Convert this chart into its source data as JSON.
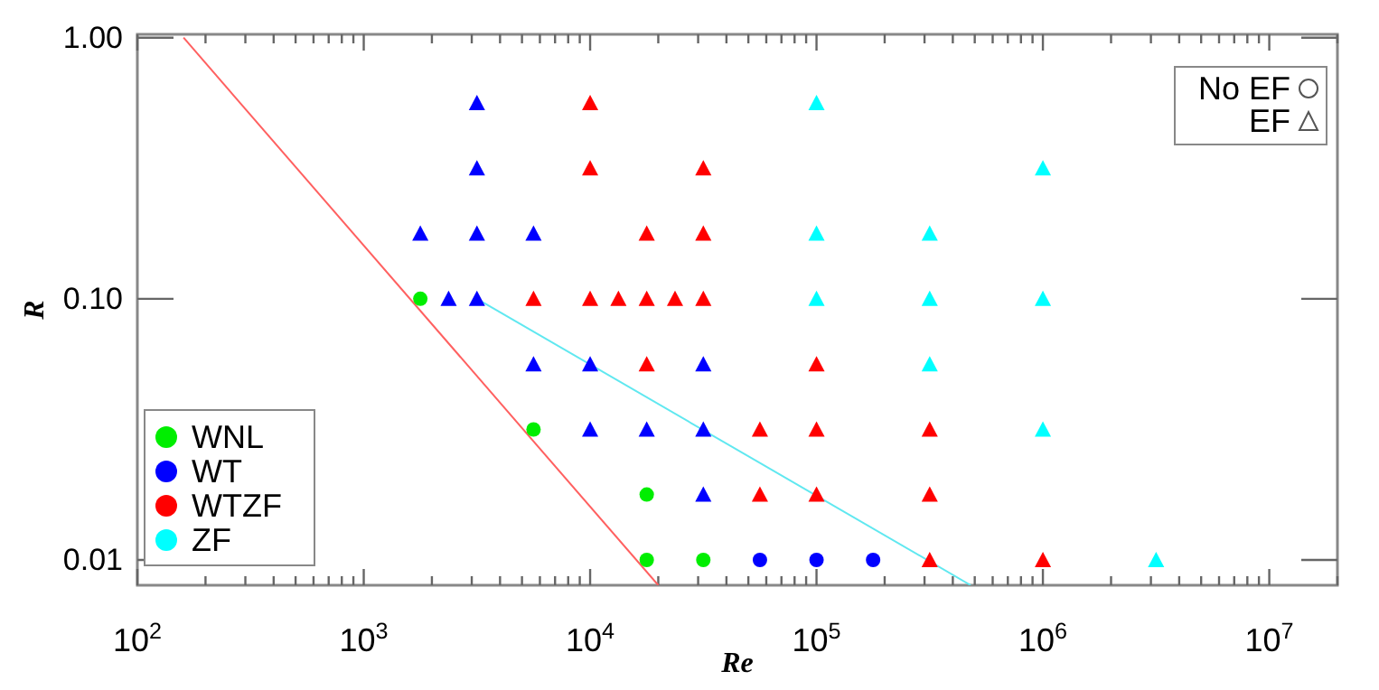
{
  "chart_data": {
    "type": "scatter",
    "xlabel": "Re",
    "ylabel": "R",
    "log": "xy",
    "grid": false,
    "legend": "bottom left",
    "xlim": [
      100,
      20000000
    ],
    "ylim": [
      0.008,
      1.03
    ],
    "xticks": [
      {
        "value": 100,
        "label": "10$^{2}$"
      },
      {
        "value": 200,
        "label": null
      },
      {
        "value": 300,
        "label": null
      },
      {
        "value": 400,
        "label": null
      },
      {
        "value": 500,
        "label": null
      },
      {
        "value": 600,
        "label": null
      },
      {
        "value": 700,
        "label": null
      },
      {
        "value": 800,
        "label": null
      },
      {
        "value": 900,
        "label": null
      },
      {
        "value": 1000,
        "label": "10$^{3}$"
      },
      {
        "value": 2000,
        "label": null
      },
      {
        "value": 3000,
        "label": null
      },
      {
        "value": 4000,
        "label": null
      },
      {
        "value": 5000,
        "label": null
      },
      {
        "value": 6000,
        "label": null
      },
      {
        "value": 7000,
        "label": null
      },
      {
        "value": 8000,
        "label": null
      },
      {
        "value": 9000,
        "label": null
      },
      {
        "value": 10000,
        "label": "10$^{4}$"
      },
      {
        "value": 20000,
        "label": null
      },
      {
        "value": 30000,
        "label": null
      },
      {
        "value": 40000,
        "label": null
      },
      {
        "value": 50000,
        "label": null
      },
      {
        "value": 60000,
        "label": null
      },
      {
        "value": 70000,
        "label": null
      },
      {
        "value": 80000,
        "label": null
      },
      {
        "value": 90000,
        "label": null
      },
      {
        "value": 100000,
        "label": "10$^{5}$"
      },
      {
        "value": 200000,
        "label": null
      },
      {
        "value": 300000,
        "label": null
      },
      {
        "value": 400000,
        "label": null
      },
      {
        "value": 500000,
        "label": null
      },
      {
        "value": 600000,
        "label": null
      },
      {
        "value": 700000,
        "label": null
      },
      {
        "value": 800000,
        "label": null
      },
      {
        "value": 900000,
        "label": null
      },
      {
        "value": 1000000,
        "label": "10$^{6}$"
      },
      {
        "value": 2000000,
        "label": null
      },
      {
        "value": 3000000,
        "label": null
      },
      {
        "value": 4000000,
        "label": null
      },
      {
        "value": 5000000,
        "label": null
      },
      {
        "value": 6000000,
        "label": null
      },
      {
        "value": 7000000,
        "label": null
      },
      {
        "value": 8000000,
        "label": null
      },
      {
        "value": 9000000,
        "label": null
      },
      {
        "value": 10000000,
        "label": "10$^{7}$"
      },
      {
        "value": 20000000,
        "label": null
      }
    ],
    "yticks": [
      {
        "value": 0.01,
        "label": "0.01"
      },
      {
        "value": 0.1,
        "label": "0.10"
      },
      {
        "value": 1.0,
        "label": "1.00"
      }
    ],
    "annotations": [
      "No EF",
      "EF"
    ],
    "series": [
      {
        "type": "line",
        "color": "#ff6060",
        "line_style": "solid",
        "marker": "none",
        "x": [
          160,
          20000
        ],
        "values": [
          1.0,
          0.008
        ]
      },
      {
        "type": "line",
        "color": "#60e8f0",
        "line_style": "solid",
        "marker": "none",
        "x": [
          3162,
          480000
        ],
        "values": [
          0.1,
          0.008
        ]
      },
      {
        "name": "WNL",
        "color": "#00ee00",
        "marker": "circle",
        "x": [
          1778,
          5623,
          17783,
          17783,
          31623
        ],
        "values": [
          0.1,
          0.0316,
          0.0178,
          0.01,
          0.01
        ]
      },
      {
        "name": "WT",
        "color": "#0000ff",
        "marker": "circle",
        "x": [
          56234,
          100000,
          177828
        ],
        "values": [
          0.01,
          0.01,
          0.01
        ]
      },
      {
        "color": "#0000ff",
        "marker": "triangle",
        "x": [
          3162,
          3162,
          1778,
          3162,
          5623,
          2371,
          3162,
          5623,
          10000,
          10000,
          17783,
          31623,
          31623,
          31623
        ],
        "values": [
          0.5623,
          0.3162,
          0.1778,
          0.1778,
          0.1778,
          0.1,
          0.1,
          0.0562,
          0.0562,
          0.0316,
          0.0316,
          0.0316,
          0.0178,
          0.0562
        ]
      },
      {
        "name": "WTZF",
        "color": "#ff0000",
        "marker": "triangle",
        "x": [
          10000,
          10000,
          31623,
          17783,
          31623,
          5623,
          10000,
          13335,
          17783,
          23714,
          31623,
          17783,
          100000,
          56234,
          100000,
          316228,
          56234,
          100000,
          316228,
          316228,
          1000000
        ],
        "values": [
          0.5623,
          0.3162,
          0.3162,
          0.1778,
          0.1778,
          0.1,
          0.1,
          0.1,
          0.1,
          0.1,
          0.1,
          0.0562,
          0.0562,
          0.0316,
          0.0316,
          0.0316,
          0.0178,
          0.0178,
          0.0178,
          0.01,
          0.01
        ]
      },
      {
        "name": "ZF",
        "color": "#00ffff",
        "marker": "triangle",
        "x": [
          100000,
          1000000,
          100000,
          316228,
          100000,
          316228,
          1000000,
          316228,
          1000000,
          3162278
        ],
        "values": [
          0.5623,
          0.3162,
          0.1778,
          0.1778,
          0.1,
          0.1,
          0.1,
          0.0562,
          0.0316,
          0.01
        ]
      }
    ]
  }
}
